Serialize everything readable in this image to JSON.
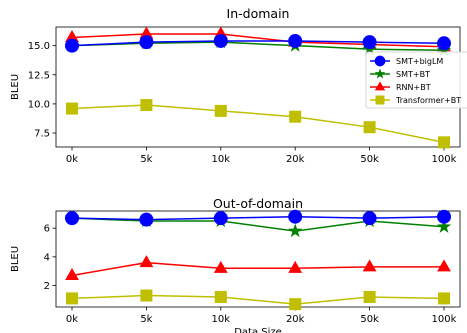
{
  "chart_data": [
    {
      "type": "line",
      "title": "In-domain",
      "xlabel": "",
      "ylabel": "BLEU",
      "categories": [
        "0k",
        "5k",
        "10k",
        "20k",
        "50k",
        "100k"
      ],
      "ylim": [
        6.3,
        16.6
      ],
      "yticks": [
        "7.5",
        "10.0",
        "12.5",
        "15.0"
      ],
      "legend_position": "right",
      "series": [
        {
          "name": "SMT+bigLM",
          "color": "#0000ff",
          "marker": "circle",
          "values": [
            15.0,
            15.3,
            15.4,
            15.4,
            15.3,
            15.2
          ]
        },
        {
          "name": "SMT+BT",
          "color": "#008000",
          "marker": "star",
          "values": [
            15.0,
            15.2,
            15.3,
            15.0,
            14.7,
            14.6
          ]
        },
        {
          "name": "RNN+BT",
          "color": "#ff0000",
          "marker": "triangle",
          "values": [
            15.7,
            16.0,
            16.0,
            15.3,
            15.1,
            14.9
          ]
        },
        {
          "name": "Transformer+BT",
          "color": "#bfbf00",
          "marker": "square",
          "values": [
            9.6,
            9.9,
            9.4,
            8.9,
            8.0,
            6.7
          ]
        }
      ]
    },
    {
      "type": "line",
      "title": "Out-of-domain",
      "xlabel": "Data Size",
      "ylabel": "BLEU",
      "categories": [
        "0k",
        "5k",
        "10k",
        "20k",
        "50k",
        "100k"
      ],
      "ylim": [
        0.5,
        7.2
      ],
      "yticks": [
        "2",
        "4",
        "6"
      ],
      "series": [
        {
          "name": "SMT+bigLM",
          "color": "#0000ff",
          "marker": "circle",
          "values": [
            6.7,
            6.6,
            6.7,
            6.8,
            6.7,
            6.8
          ]
        },
        {
          "name": "SMT+BT",
          "color": "#008000",
          "marker": "star",
          "values": [
            6.7,
            6.5,
            6.5,
            5.8,
            6.5,
            6.1
          ]
        },
        {
          "name": "RNN+BT",
          "color": "#ff0000",
          "marker": "triangle",
          "values": [
            2.7,
            3.6,
            3.2,
            3.2,
            3.3,
            3.3
          ]
        },
        {
          "name": "Transformer+BT",
          "color": "#bfbf00",
          "marker": "square",
          "values": [
            1.1,
            1.3,
            1.2,
            0.7,
            1.2,
            1.1
          ]
        }
      ]
    }
  ]
}
